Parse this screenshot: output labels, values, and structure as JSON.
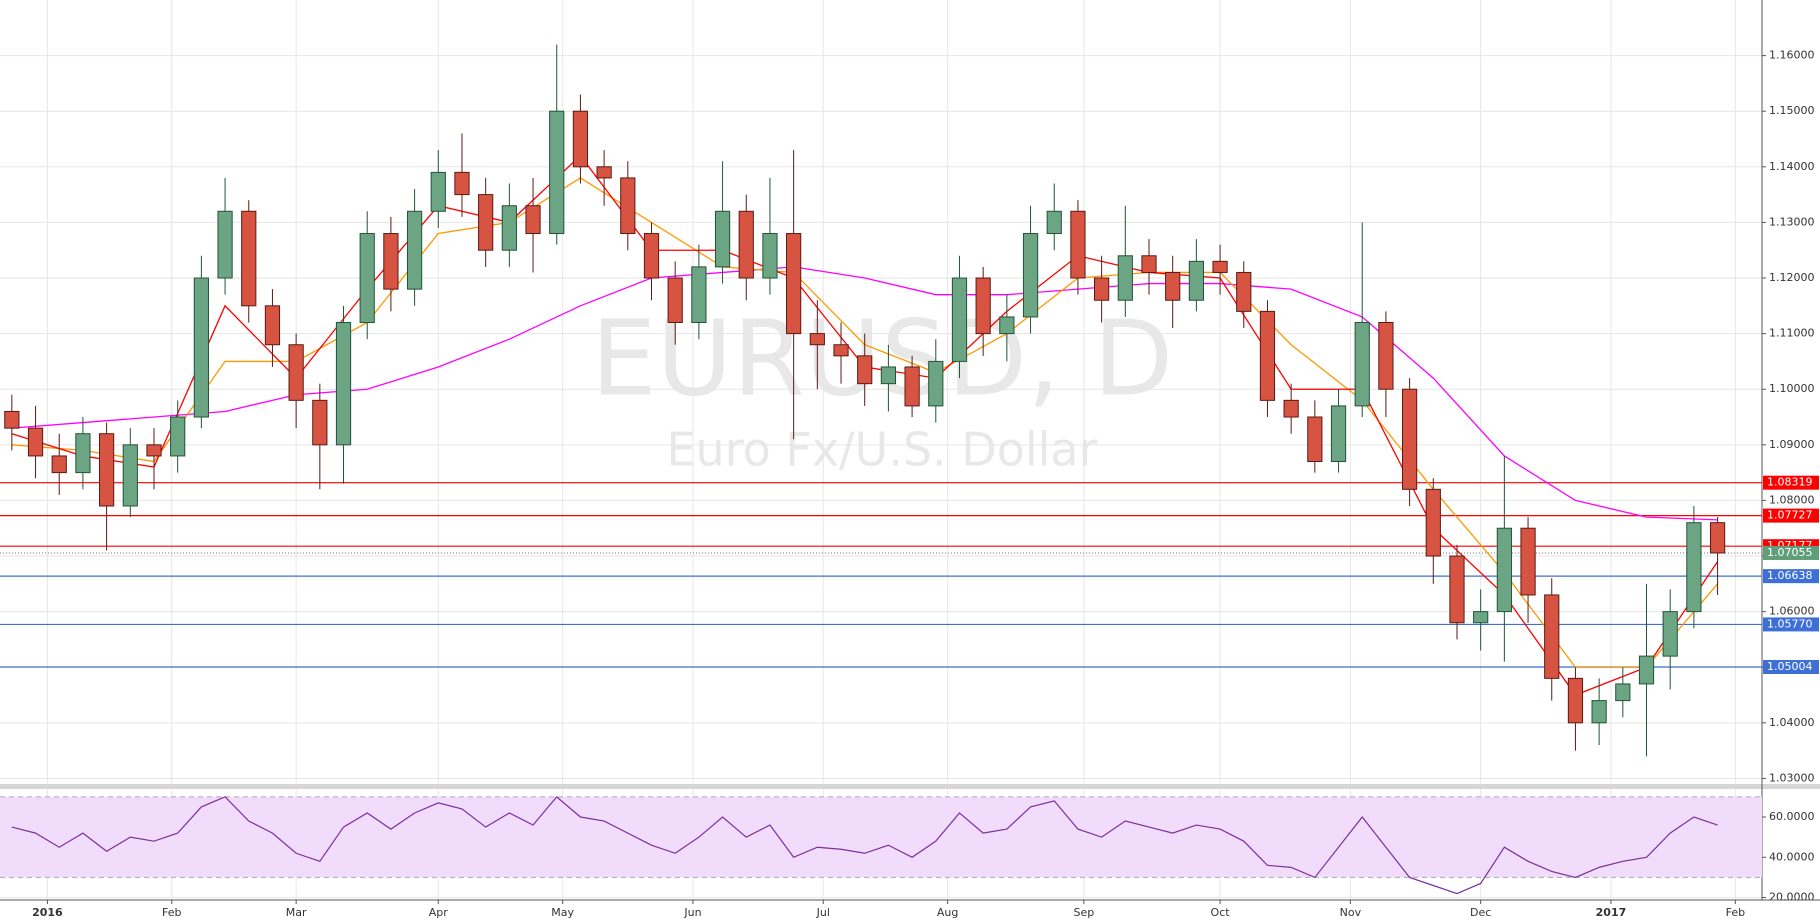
{
  "chart_data": [
    {
      "type": "candlestick",
      "title": "EURUSD, D",
      "subtitle": "Euro Fx/U.S. Dollar",
      "x": [
        -6,
        -2,
        2,
        6,
        10,
        14,
        18,
        22,
        26,
        30,
        34,
        38,
        42,
        46,
        50,
        54,
        58,
        62,
        66,
        70,
        74,
        78,
        82,
        86,
        90,
        94,
        98,
        102,
        106,
        110,
        114,
        118,
        122,
        126,
        130,
        134,
        138,
        142,
        146,
        150,
        154,
        158,
        162,
        166,
        170,
        174,
        178,
        182,
        186,
        190,
        194,
        198,
        202,
        206,
        210,
        214,
        218,
        222,
        226,
        230,
        234,
        238,
        242,
        246,
        250,
        254,
        258,
        262,
        266,
        270,
        274,
        278,
        282
      ],
      "open": [
        1.096,
        1.093,
        1.088,
        1.085,
        1.092,
        1.079,
        1.09,
        1.088,
        1.095,
        1.12,
        1.132,
        1.115,
        1.108,
        1.098,
        1.09,
        1.112,
        1.128,
        1.118,
        1.132,
        1.139,
        1.135,
        1.125,
        1.133,
        1.128,
        1.15,
        1.14,
        1.138,
        1.128,
        1.12,
        1.112,
        1.122,
        1.132,
        1.12,
        1.128,
        1.11,
        1.108,
        1.106,
        1.101,
        1.104,
        1.097,
        1.105,
        1.12,
        1.11,
        1.113,
        1.128,
        1.132,
        1.12,
        1.116,
        1.124,
        1.121,
        1.116,
        1.123,
        1.121,
        1.114,
        1.098,
        1.095,
        1.087,
        1.097,
        1.112,
        1.1,
        1.082,
        1.07,
        1.058,
        1.06,
        1.075,
        1.063,
        1.048,
        1.04,
        1.044,
        1.047,
        1.052,
        1.06,
        1.076
      ],
      "high": [
        1.099,
        1.097,
        1.092,
        1.095,
        1.094,
        1.093,
        1.093,
        1.098,
        1.124,
        1.138,
        1.134,
        1.118,
        1.11,
        1.101,
        1.115,
        1.132,
        1.131,
        1.136,
        1.143,
        1.146,
        1.138,
        1.137,
        1.138,
        1.162,
        1.153,
        1.143,
        1.141,
        1.13,
        1.123,
        1.126,
        1.141,
        1.135,
        1.138,
        1.143,
        1.116,
        1.112,
        1.11,
        1.108,
        1.106,
        1.109,
        1.124,
        1.122,
        1.117,
        1.133,
        1.137,
        1.134,
        1.124,
        1.133,
        1.127,
        1.124,
        1.127,
        1.126,
        1.123,
        1.116,
        1.101,
        1.098,
        1.1,
        1.13,
        1.114,
        1.102,
        1.084,
        1.072,
        1.064,
        1.088,
        1.077,
        1.066,
        1.05,
        1.048,
        1.05,
        1.065,
        1.064,
        1.079,
        1.077
      ],
      "low": [
        1.089,
        1.084,
        1.081,
        1.082,
        1.071,
        1.077,
        1.082,
        1.085,
        1.093,
        1.117,
        1.112,
        1.104,
        1.093,
        1.082,
        1.083,
        1.109,
        1.114,
        1.115,
        1.129,
        1.131,
        1.122,
        1.122,
        1.121,
        1.126,
        1.137,
        1.133,
        1.125,
        1.116,
        1.108,
        1.109,
        1.119,
        1.116,
        1.117,
        1.091,
        1.1,
        1.101,
        1.097,
        1.096,
        1.095,
        1.094,
        1.102,
        1.106,
        1.105,
        1.11,
        1.125,
        1.117,
        1.112,
        1.113,
        1.117,
        1.111,
        1.114,
        1.117,
        1.111,
        1.095,
        1.092,
        1.085,
        1.085,
        1.095,
        1.095,
        1.079,
        1.065,
        1.055,
        1.053,
        1.051,
        1.058,
        1.044,
        1.035,
        1.036,
        1.041,
        1.034,
        1.046,
        1.057,
        1.063
      ],
      "close": [
        1.093,
        1.088,
        1.085,
        1.092,
        1.079,
        1.09,
        1.088,
        1.095,
        1.12,
        1.132,
        1.115,
        1.108,
        1.098,
        1.09,
        1.112,
        1.128,
        1.118,
        1.132,
        1.139,
        1.135,
        1.125,
        1.133,
        1.128,
        1.15,
        1.14,
        1.138,
        1.128,
        1.12,
        1.112,
        1.122,
        1.132,
        1.12,
        1.128,
        1.11,
        1.108,
        1.106,
        1.101,
        1.104,
        1.097,
        1.105,
        1.12,
        1.11,
        1.113,
        1.128,
        1.132,
        1.12,
        1.116,
        1.124,
        1.121,
        1.116,
        1.123,
        1.121,
        1.114,
        1.098,
        1.095,
        1.087,
        1.097,
        1.112,
        1.1,
        1.082,
        1.07,
        1.058,
        1.06,
        1.075,
        1.063,
        1.048,
        1.04,
        1.044,
        1.047,
        1.052,
        1.06,
        1.076,
        1.07055
      ],
      "up_color": "#6ba583",
      "down_color": "#d75442",
      "up_border": "#225437",
      "down_border": "#5b1a13",
      "ma_x": [
        -6,
        6,
        18,
        30,
        42,
        54,
        66,
        78,
        90,
        102,
        114,
        126,
        138,
        150,
        162,
        174,
        186,
        198,
        210,
        222,
        234,
        246,
        258,
        270,
        282
      ],
      "overlays": [
        {
          "color": "#ff00ff",
          "values": [
            1.093,
            1.094,
            1.095,
            1.096,
            1.099,
            1.1,
            1.104,
            1.109,
            1.115,
            1.12,
            1.121,
            1.122,
            1.12,
            1.117,
            1.117,
            1.118,
            1.119,
            1.119,
            1.118,
            1.113,
            1.102,
            1.088,
            1.08,
            1.077,
            1.0765
          ]
        },
        {
          "color": "#ff9800",
          "values": [
            1.09,
            1.089,
            1.087,
            1.105,
            1.105,
            1.112,
            1.128,
            1.13,
            1.138,
            1.13,
            1.122,
            1.121,
            1.108,
            1.103,
            1.11,
            1.12,
            1.121,
            1.121,
            1.108,
            1.098,
            1.082,
            1.067,
            1.05,
            1.05,
            1.065
          ]
        },
        {
          "color": "#ff0000",
          "values": [
            1.092,
            1.088,
            1.086,
            1.115,
            1.102,
            1.118,
            1.133,
            1.13,
            1.142,
            1.125,
            1.125,
            1.12,
            1.104,
            1.102,
            1.114,
            1.124,
            1.121,
            1.12,
            1.1,
            1.1,
            1.075,
            1.063,
            1.045,
            1.05,
            1.069
          ]
        }
      ],
      "levels": [
        {
          "value": 1.08319,
          "color": "#ff0000"
        },
        {
          "value": 1.07727,
          "color": "#ff0000"
        },
        {
          "value": 1.07177,
          "color": "#ff0000"
        },
        {
          "value": 1.06638,
          "color": "#3d6fd6"
        },
        {
          "value": 1.0577,
          "label": "1.05770",
          "color": "#3d6fd6"
        },
        {
          "value": 1.05004,
          "color": "#3d6fd6"
        }
      ],
      "last": {
        "value": 1.07055,
        "color": "#5f9e79"
      },
      "xlim": [
        -8,
        289.5
      ],
      "ylim": [
        1.029,
        1.17
      ],
      "grid": true,
      "yticks": [
        {
          "value": 1.03,
          "label": "1.03000"
        },
        {
          "value": 1.04,
          "label": "1.04000"
        },
        {
          "value": 1.05,
          "label": "1.05000"
        },
        {
          "value": 1.06,
          "label": "1.06000"
        },
        {
          "value": 1.07,
          "label": "1.07000"
        },
        {
          "value": 1.08,
          "label": "1.08000"
        },
        {
          "value": 1.09,
          "label": "1.09000"
        },
        {
          "value": 1.1,
          "label": "1.10000"
        },
        {
          "value": 1.11,
          "label": "1.11000"
        },
        {
          "value": 1.12,
          "label": "1.12000"
        },
        {
          "value": 1.13,
          "label": "1.13000"
        },
        {
          "value": 1.14,
          "label": "1.14000"
        },
        {
          "value": 1.15,
          "label": "1.15000"
        },
        {
          "value": 1.16,
          "label": "1.16000"
        }
      ]
    },
    {
      "type": "line",
      "x": [
        -6,
        -2,
        2,
        6,
        10,
        14,
        18,
        22,
        26,
        30,
        34,
        38,
        42,
        46,
        50,
        54,
        58,
        62,
        66,
        70,
        74,
        78,
        82,
        86,
        90,
        94,
        98,
        102,
        106,
        110,
        114,
        118,
        122,
        126,
        130,
        134,
        138,
        142,
        146,
        150,
        154,
        158,
        162,
        166,
        170,
        174,
        178,
        182,
        186,
        190,
        194,
        198,
        202,
        206,
        210,
        214,
        218,
        222,
        226,
        230,
        234,
        238,
        242,
        246,
        250,
        254,
        258,
        262,
        266,
        270,
        274,
        278,
        282
      ],
      "series": [
        {
          "color": "#7b2f9e",
          "values": [
            55,
            52,
            45,
            52,
            43,
            50,
            48,
            52,
            65,
            70,
            58,
            52,
            42,
            38,
            55,
            62,
            54,
            62,
            67,
            64,
            55,
            62,
            56,
            70,
            60,
            58,
            52,
            46,
            42,
            50,
            60,
            50,
            56,
            40,
            45,
            44,
            42,
            46,
            40,
            48,
            62,
            52,
            54,
            65,
            68,
            54,
            50,
            58,
            55,
            52,
            56,
            54,
            48,
            36,
            35,
            30,
            45,
            60,
            45,
            30,
            26,
            22,
            27,
            45,
            38,
            33,
            30,
            35,
            38,
            40,
            52,
            60,
            56
          ]
        }
      ],
      "band": [
        30,
        70
      ],
      "band_color": "#f1dcfb",
      "xlim": [
        -8,
        289.5
      ],
      "ylim": [
        18.8,
        73.9
      ],
      "grid": true,
      "yticks": [
        {
          "value": 20,
          "label": "20.0000"
        },
        {
          "value": 40,
          "label": "40.0000"
        },
        {
          "value": 60,
          "label": "60.0000"
        }
      ],
      "xticks": [
        {
          "value": 0,
          "label": "2016"
        },
        {
          "value": 21,
          "label": "Feb"
        },
        {
          "value": 42,
          "label": "Mar"
        },
        {
          "value": 66,
          "label": "Apr"
        },
        {
          "value": 87,
          "label": "May"
        },
        {
          "value": 109,
          "label": "Jun"
        },
        {
          "value": 131,
          "label": "Jul"
        },
        {
          "value": 152,
          "label": "Aug"
        },
        {
          "value": 175,
          "label": "Sep"
        },
        {
          "value": 198,
          "label": "Oct"
        },
        {
          "value": 220,
          "label": "Nov"
        },
        {
          "value": 242,
          "label": "Dec"
        },
        {
          "value": 264,
          "label": "2017"
        },
        {
          "value": 285,
          "label": "Feb"
        }
      ]
    }
  ]
}
